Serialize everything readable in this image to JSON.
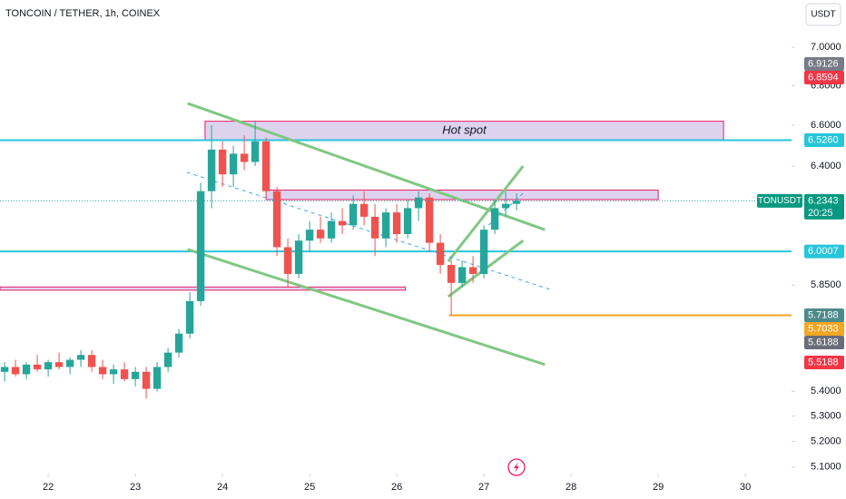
{
  "chart_data": {
    "type": "candlestick",
    "title": "TONCOIN / TETHER, 1h, COINEX",
    "currency": "USDT",
    "log_scale": true,
    "ylim": [
      5.075,
      7.254
    ],
    "yticks": [
      {
        "value": 5.1,
        "label": "5.1000"
      },
      {
        "value": 5.2,
        "label": "5.2000"
      },
      {
        "value": 5.3,
        "label": "5.3000"
      },
      {
        "value": 5.4,
        "label": "5.4000"
      },
      {
        "value": 5.85,
        "label": "5.8500"
      },
      {
        "value": 6.4,
        "label": "6.4000"
      },
      {
        "value": 6.6,
        "label": "6.6000"
      },
      {
        "value": 6.8,
        "label": "6.8000"
      },
      {
        "value": 7,
        "label": "7.0000"
      }
    ],
    "xlim": [
      21.447,
      30.53
    ],
    "xticks": [
      22,
      23,
      24,
      25,
      26,
      27,
      28,
      29,
      30
    ],
    "up_color": "#26a69a",
    "down_color": "#ef5350",
    "candles": {
      "x": [
        21.5,
        21.625,
        21.75,
        21.875,
        22,
        22.125,
        22.25,
        22.375,
        22.5,
        22.625,
        22.75,
        22.875,
        23,
        23.125,
        23.25,
        23.375,
        23.5,
        23.625,
        23.75,
        23.875,
        24,
        24.125,
        24.25,
        24.375,
        24.5,
        24.625,
        24.75,
        24.875,
        25,
        25.125,
        25.25,
        25.375,
        25.5,
        25.625,
        25.75,
        25.875,
        26,
        26.125,
        26.25,
        26.375,
        26.5,
        26.625,
        26.75,
        26.875,
        27,
        27.125,
        27.25,
        27.375
      ],
      "open": [
        5.48,
        5.5,
        5.47,
        5.51,
        5.49,
        5.52,
        5.5,
        5.53,
        5.55,
        5.5,
        5.47,
        5.49,
        5.45,
        5.48,
        5.41,
        5.5,
        5.56,
        5.64,
        5.78,
        6.28,
        6.48,
        6.36,
        6.46,
        6.42,
        6.52,
        6.28,
        6.02,
        5.9,
        6.05,
        6.1,
        6.06,
        6.14,
        6.12,
        6.22,
        6.16,
        6.06,
        6.18,
        6.08,
        6.2,
        6.25,
        6.04,
        5.94,
        5.86,
        5.93,
        5.9,
        6.1,
        6.2,
        6.22
      ],
      "high": [
        5.52,
        5.53,
        5.52,
        5.55,
        5.53,
        5.56,
        5.54,
        5.57,
        5.57,
        5.53,
        5.51,
        5.52,
        5.5,
        5.5,
        5.52,
        5.58,
        5.66,
        5.82,
        6.32,
        6.6,
        6.52,
        6.5,
        6.55,
        6.62,
        6.54,
        6.3,
        6.06,
        6.08,
        6.14,
        6.16,
        6.18,
        6.2,
        6.26,
        6.28,
        6.22,
        6.2,
        6.22,
        6.24,
        6.28,
        6.27,
        6.08,
        5.96,
        5.96,
        5.98,
        6.12,
        6.24,
        6.28,
        6.27
      ],
      "low": [
        5.44,
        5.46,
        5.45,
        5.48,
        5.46,
        5.49,
        5.47,
        5.5,
        5.48,
        5.45,
        5.43,
        5.44,
        5.42,
        5.37,
        5.4,
        5.48,
        5.54,
        5.62,
        5.76,
        6.2,
        6.3,
        6.3,
        6.38,
        6.4,
        6.24,
        5.98,
        5.84,
        5.88,
        6,
        6.04,
        6.04,
        6.08,
        6.1,
        6.12,
        5.98,
        6.02,
        6.04,
        6.06,
        6.14,
        6,
        5.9,
        5.72,
        5.84,
        5.86,
        5.88,
        6.08,
        6.16,
        6.19
      ],
      "close": [
        5.5,
        5.47,
        5.51,
        5.49,
        5.52,
        5.5,
        5.53,
        5.55,
        5.5,
        5.47,
        5.49,
        5.45,
        5.48,
        5.41,
        5.5,
        5.56,
        5.64,
        5.78,
        6.28,
        6.48,
        6.36,
        6.46,
        6.42,
        6.52,
        6.28,
        6.02,
        5.9,
        6.05,
        6.1,
        6.06,
        6.14,
        6.12,
        6.22,
        6.16,
        6.06,
        6.18,
        6.08,
        6.2,
        6.25,
        6.04,
        5.94,
        5.86,
        5.93,
        5.9,
        6.1,
        6.2,
        6.22,
        6.2343
      ]
    },
    "zones": [
      {
        "label": "Hot spot",
        "x": [
          23.8,
          29.75
        ],
        "y": [
          6.526,
          6.62
        ]
      },
      {
        "x": [
          24.5,
          29.0
        ],
        "y": [
          6.24,
          6.285
        ]
      },
      {
        "x": [
          21.447,
          26.1
        ],
        "y": [
          5.828,
          5.842
        ]
      }
    ],
    "levels": [
      {
        "value": 6.526,
        "color": "#26c6da"
      },
      {
        "value": 6.0007,
        "color": "#26c6da"
      },
      {
        "value": 5.7188,
        "color": "#f5a623",
        "from": 26.6
      }
    ],
    "trendlines": [
      {
        "x": [
          23.6,
          27.7
        ],
        "y": [
          6.71,
          6.1
        ],
        "color": "#81c784"
      },
      {
        "x": [
          23.6,
          27.7
        ],
        "y": [
          6.01,
          5.51
        ],
        "color": "#81c784"
      },
      {
        "x": [
          26.59,
          27.45
        ],
        "y": [
          5.956,
          6.4
        ],
        "color": "#81c784"
      },
      {
        "x": [
          26.59,
          27.45
        ],
        "y": [
          5.8,
          6.05
        ],
        "color": "#81c784"
      },
      {
        "x": [
          23.59,
          27.77
        ],
        "y": [
          6.37,
          5.83
        ],
        "color": "#42a5f5",
        "dashed": true
      },
      {
        "x": [
          27.05,
          27.45
        ],
        "y": [
          6.12,
          6.27
        ],
        "color": "#42a5f5",
        "dashed": true
      }
    ],
    "price_labels": [
      {
        "value": 6.9126,
        "label": "6.9126",
        "color": "#787b86"
      },
      {
        "value": 6.8594,
        "label": "6.8594",
        "color": "#f23645"
      },
      {
        "value": 6.526,
        "label": "6.5260",
        "color": "#26c6da"
      },
      {
        "value": 6.2343,
        "label": "6.2343",
        "color": "#089981",
        "name": "TONUSDT",
        "countdown": "20:25"
      },
      {
        "value": 6.0007,
        "label": "6.0007",
        "color": "#26c6da"
      },
      {
        "value": 5.7188,
        "label": "5.7188",
        "color": "#4d8a8a"
      },
      {
        "value": 5.7033,
        "label": "5.7033",
        "color": "#f5a623"
      },
      {
        "value": 5.6188,
        "label": "5.6188",
        "color": "#6a6d78"
      },
      {
        "value": 5.5188,
        "label": "5.5188",
        "color": "#f23645"
      }
    ]
  }
}
